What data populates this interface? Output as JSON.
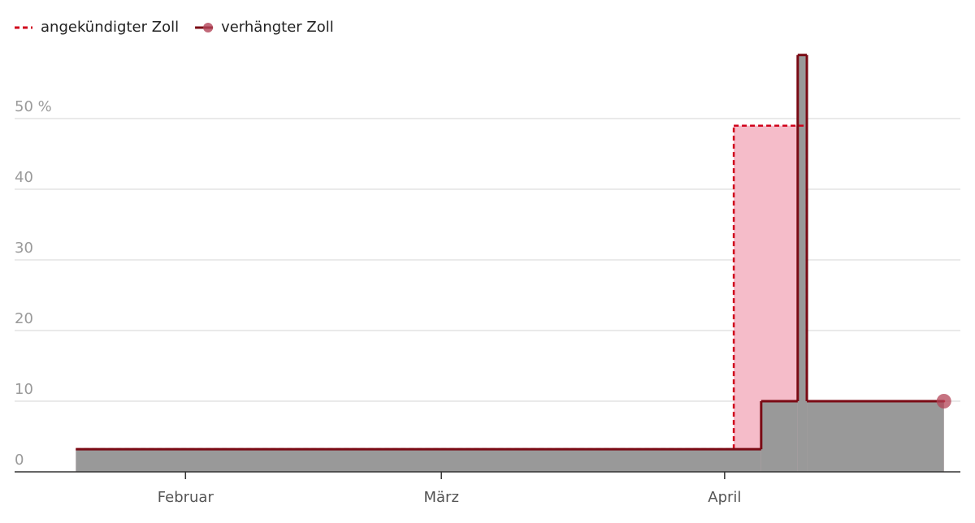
{
  "chart_data": {
    "type": "step",
    "series": [
      {
        "name": "angekündigter Zoll",
        "color": "#d0021b",
        "fill": "#f5bcc9",
        "dashed": true,
        "marker": false,
        "x": [
          19,
          91,
          99,
          114
        ],
        "values": [
          3.2,
          49,
          10,
          10
        ]
      },
      {
        "name": "verhängter Zoll",
        "color": "#7a0a14",
        "fill": "#999999",
        "dashed": false,
        "marker": true,
        "x": [
          19,
          94,
          98,
          99,
          114
        ],
        "values": [
          3.2,
          10,
          59,
          10,
          10
        ]
      }
    ],
    "xlim": [
      12.3,
      115.8
    ],
    "xticks": [
      {
        "value": 31,
        "label": "Februar"
      },
      {
        "value": 59,
        "label": "März"
      },
      {
        "value": 90,
        "label": "April"
      }
    ],
    "ylim": [
      0,
      60
    ],
    "yticks": [
      0,
      10,
      20,
      30,
      40,
      {
        "value": 50,
        "label": "50 %"
      }
    ],
    "grid": true
  }
}
